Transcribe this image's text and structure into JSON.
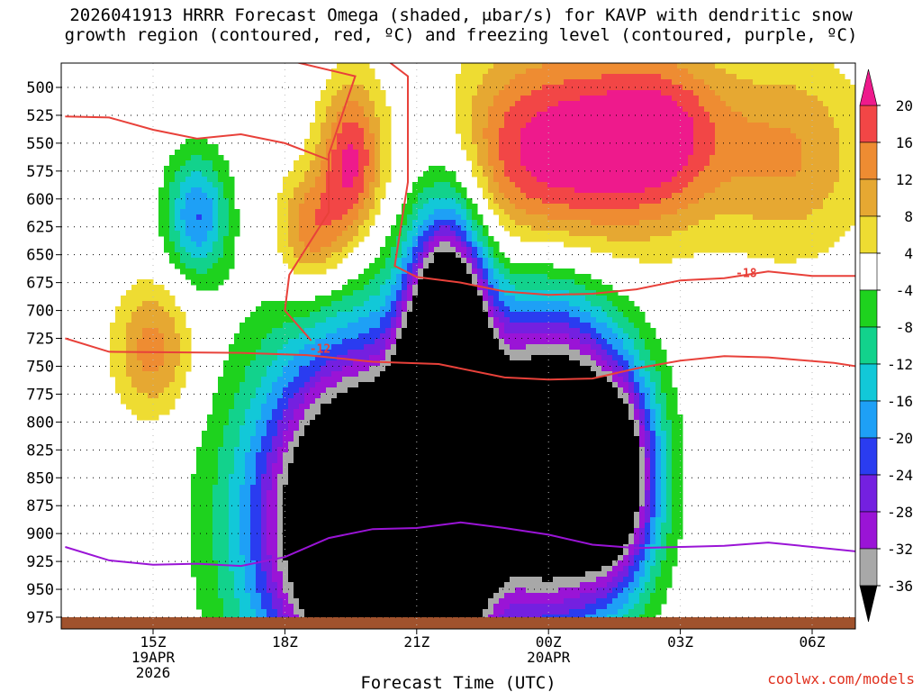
{
  "title": {
    "line1": "2026041913 HRRR Forecast Omega (shaded, μbar/s) for KAVP with dendritic snow",
    "line2": "growth region (contoured, red, ºC) and freezing level (contoured, purple, ºC)"
  },
  "credit": "coolwx.com/models",
  "chart_data": {
    "type": "heatmap",
    "title": "2026041913 HRRR Forecast Omega (shaded, μbar/s) for KAVP with dendritic snow growth region (contoured, red, ºC) and freezing level (contoured, purple, ºC)",
    "xlabel": "Forecast Time (UTC)",
    "ylabel": "",
    "x_unit": "forecast hour from 2026041913",
    "xlim": [
      0,
      18
    ],
    "x_ticks": [
      {
        "x": 2,
        "lines": [
          "15Z",
          "19APR",
          "2026"
        ]
      },
      {
        "x": 5,
        "lines": [
          "18Z"
        ]
      },
      {
        "x": 8,
        "lines": [
          "21Z"
        ]
      },
      {
        "x": 11,
        "lines": [
          "00Z",
          "20APR"
        ]
      },
      {
        "x": 14,
        "lines": [
          "03Z"
        ]
      },
      {
        "x": 17,
        "lines": [
          "06Z"
        ]
      }
    ],
    "y_unit": "mb",
    "ylim": [
      985,
      480
    ],
    "y_ticks": [
      500,
      525,
      550,
      575,
      600,
      625,
      650,
      675,
      700,
      725,
      750,
      775,
      800,
      825,
      850,
      875,
      900,
      925,
      950,
      975
    ],
    "grid": "dotted",
    "colorbar": {
      "levels": [
        -36,
        -32,
        -28,
        -24,
        -20,
        -16,
        -12,
        -8,
        -4,
        4,
        8,
        12,
        16,
        20
      ],
      "labels": [
        "20",
        "16",
        "12",
        "8",
        "4",
        "-4",
        "-8",
        "-12",
        "-16",
        "-20",
        "-24",
        "-28",
        "-32",
        "-36"
      ],
      "colors": {
        "below_-36": "#000000",
        "-36_-32": "#a8a8a8",
        "-32_-28": "#9a14d6",
        "-28_-24": "#7420e0",
        "-24_-20": "#2a3cf0",
        "-20_-16": "#1ea0f6",
        "-16_-12": "#12c8d8",
        "-12_-8": "#12d28c",
        "-8_-4": "#1ed21e",
        "-4_4": "#ffffff",
        "4_8": "#eedc32",
        "8_12": "#e6a832",
        "12_16": "#ee8c32",
        "16_20": "#f24646",
        "above_20": "#ee1a8c"
      }
    },
    "omega_centers": [
      {
        "x": 6.9,
        "p": 890,
        "value": -70,
        "rx": 2.4,
        "ry": 150,
        "note": "main ascent core"
      },
      {
        "x": 8.7,
        "p": 800,
        "value": -90,
        "rx": 0.9,
        "ry": 160
      },
      {
        "x": 11.0,
        "p": 835,
        "value": -55,
        "rx": 1.5,
        "ry": 140
      },
      {
        "x": 12.5,
        "p": 850,
        "value": -40,
        "rx": 1.0,
        "ry": 95
      },
      {
        "x": 5.6,
        "p": 630,
        "value": 16,
        "rx": 0.8,
        "ry": 55
      },
      {
        "x": 6.5,
        "p": 565,
        "value": 20,
        "rx": 0.7,
        "ry": 70
      },
      {
        "x": 2.0,
        "p": 735,
        "value": 14,
        "rx": 0.9,
        "ry": 60
      },
      {
        "x": 3.0,
        "p": 615,
        "value": -20,
        "rx": 0.7,
        "ry": 55
      },
      {
        "x": 11.2,
        "p": 560,
        "value": 24,
        "rx": 2.5,
        "ry": 95
      },
      {
        "x": 13.6,
        "p": 540,
        "value": 16,
        "rx": 1.5,
        "ry": 70
      },
      {
        "x": 16.5,
        "p": 560,
        "value": 12,
        "rx": 1.8,
        "ry": 90
      }
    ],
    "contours": [
      {
        "name": "-12",
        "label": "-12",
        "kind": "dendritic",
        "color": "#e8413a",
        "points": [
          [
            0,
            725
          ],
          [
            1.0,
            737
          ],
          [
            4.0,
            738
          ],
          [
            5.5,
            740
          ],
          [
            7.0,
            746
          ],
          [
            8.5,
            748
          ],
          [
            10.0,
            760
          ],
          [
            11.0,
            762
          ],
          [
            12.0,
            761
          ],
          [
            13.0,
            752
          ],
          [
            14.0,
            745
          ],
          [
            15.0,
            741
          ],
          [
            16.0,
            742
          ],
          [
            17.5,
            747
          ],
          [
            18,
            750
          ]
        ]
      },
      {
        "name": "-18",
        "label": "-18",
        "kind": "dendritic",
        "color": "#e8413a",
        "points": [
          [
            5.6,
            727
          ],
          [
            5.0,
            700
          ],
          [
            5.1,
            668
          ],
          [
            6.0,
            612
          ],
          [
            6.0,
            560
          ],
          [
            6.6,
            490
          ],
          [
            5.0,
            475
          ]
        ],
        "points2": [
          [
            7.3,
            475
          ],
          [
            7.8,
            490
          ],
          [
            7.8,
            585
          ],
          [
            7.5,
            660
          ],
          [
            8.0,
            670
          ],
          [
            9.0,
            675
          ],
          [
            10.0,
            683
          ],
          [
            11.0,
            686
          ],
          [
            12.0,
            685
          ],
          [
            13.0,
            681
          ],
          [
            14.0,
            673
          ],
          [
            15.0,
            671
          ],
          [
            16.0,
            665
          ],
          [
            17.0,
            669
          ],
          [
            18,
            669
          ]
        ]
      },
      {
        "name": "-18-upper",
        "label": "",
        "kind": "dendritic",
        "color": "#e8413a",
        "points": [
          [
            0,
            526
          ],
          [
            1.0,
            527
          ],
          [
            2.0,
            538
          ],
          [
            3.0,
            546
          ],
          [
            4.0,
            542
          ],
          [
            5.0,
            550
          ],
          [
            6.0,
            565
          ]
        ]
      },
      {
        "name": "0",
        "label": "",
        "kind": "freezing",
        "color": "#9a14d6",
        "points": [
          [
            0,
            912
          ],
          [
            1.0,
            924
          ],
          [
            2.0,
            928
          ],
          [
            3.0,
            927
          ],
          [
            4.0,
            929
          ],
          [
            5.0,
            921
          ],
          [
            6.0,
            904
          ],
          [
            7.0,
            896
          ],
          [
            8.0,
            895
          ],
          [
            9.0,
            890
          ],
          [
            10.0,
            895
          ],
          [
            11.0,
            901
          ],
          [
            12.0,
            910
          ],
          [
            13.0,
            913
          ],
          [
            14.0,
            912
          ],
          [
            15.0,
            911
          ],
          [
            16.0,
            908
          ],
          [
            17.0,
            912
          ],
          [
            18,
            916
          ]
        ]
      }
    ],
    "annotations": [
      "-12",
      "-18"
    ]
  }
}
